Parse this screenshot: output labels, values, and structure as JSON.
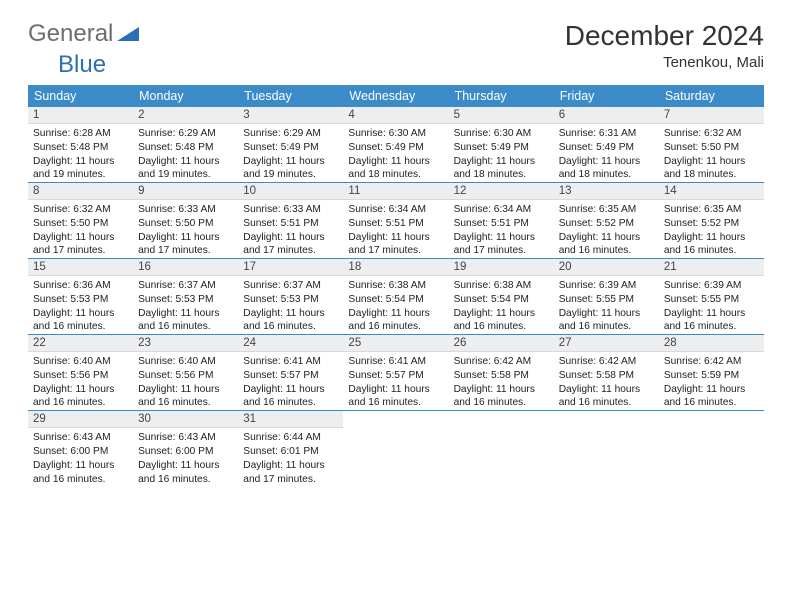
{
  "brand": {
    "general": "General",
    "blue": "Blue"
  },
  "title": "December 2024",
  "location": "Tenenkou, Mali",
  "header_bg": "#3b8bc9",
  "header_fg": "#ffffff",
  "daynum_bg": "#edeef0",
  "day_names": [
    "Sunday",
    "Monday",
    "Tuesday",
    "Wednesday",
    "Thursday",
    "Friday",
    "Saturday"
  ],
  "weeks": [
    [
      {
        "n": "1",
        "sr": "6:28 AM",
        "ss": "5:48 PM",
        "dl": "11 hours and 19 minutes."
      },
      {
        "n": "2",
        "sr": "6:29 AM",
        "ss": "5:48 PM",
        "dl": "11 hours and 19 minutes."
      },
      {
        "n": "3",
        "sr": "6:29 AM",
        "ss": "5:49 PM",
        "dl": "11 hours and 19 minutes."
      },
      {
        "n": "4",
        "sr": "6:30 AM",
        "ss": "5:49 PM",
        "dl": "11 hours and 18 minutes."
      },
      {
        "n": "5",
        "sr": "6:30 AM",
        "ss": "5:49 PM",
        "dl": "11 hours and 18 minutes."
      },
      {
        "n": "6",
        "sr": "6:31 AM",
        "ss": "5:49 PM",
        "dl": "11 hours and 18 minutes."
      },
      {
        "n": "7",
        "sr": "6:32 AM",
        "ss": "5:50 PM",
        "dl": "11 hours and 18 minutes."
      }
    ],
    [
      {
        "n": "8",
        "sr": "6:32 AM",
        "ss": "5:50 PM",
        "dl": "11 hours and 17 minutes."
      },
      {
        "n": "9",
        "sr": "6:33 AM",
        "ss": "5:50 PM",
        "dl": "11 hours and 17 minutes."
      },
      {
        "n": "10",
        "sr": "6:33 AM",
        "ss": "5:51 PM",
        "dl": "11 hours and 17 minutes."
      },
      {
        "n": "11",
        "sr": "6:34 AM",
        "ss": "5:51 PM",
        "dl": "11 hours and 17 minutes."
      },
      {
        "n": "12",
        "sr": "6:34 AM",
        "ss": "5:51 PM",
        "dl": "11 hours and 17 minutes."
      },
      {
        "n": "13",
        "sr": "6:35 AM",
        "ss": "5:52 PM",
        "dl": "11 hours and 16 minutes."
      },
      {
        "n": "14",
        "sr": "6:35 AM",
        "ss": "5:52 PM",
        "dl": "11 hours and 16 minutes."
      }
    ],
    [
      {
        "n": "15",
        "sr": "6:36 AM",
        "ss": "5:53 PM",
        "dl": "11 hours and 16 minutes."
      },
      {
        "n": "16",
        "sr": "6:37 AM",
        "ss": "5:53 PM",
        "dl": "11 hours and 16 minutes."
      },
      {
        "n": "17",
        "sr": "6:37 AM",
        "ss": "5:53 PM",
        "dl": "11 hours and 16 minutes."
      },
      {
        "n": "18",
        "sr": "6:38 AM",
        "ss": "5:54 PM",
        "dl": "11 hours and 16 minutes."
      },
      {
        "n": "19",
        "sr": "6:38 AM",
        "ss": "5:54 PM",
        "dl": "11 hours and 16 minutes."
      },
      {
        "n": "20",
        "sr": "6:39 AM",
        "ss": "5:55 PM",
        "dl": "11 hours and 16 minutes."
      },
      {
        "n": "21",
        "sr": "6:39 AM",
        "ss": "5:55 PM",
        "dl": "11 hours and 16 minutes."
      }
    ],
    [
      {
        "n": "22",
        "sr": "6:40 AM",
        "ss": "5:56 PM",
        "dl": "11 hours and 16 minutes."
      },
      {
        "n": "23",
        "sr": "6:40 AM",
        "ss": "5:56 PM",
        "dl": "11 hours and 16 minutes."
      },
      {
        "n": "24",
        "sr": "6:41 AM",
        "ss": "5:57 PM",
        "dl": "11 hours and 16 minutes."
      },
      {
        "n": "25",
        "sr": "6:41 AM",
        "ss": "5:57 PM",
        "dl": "11 hours and 16 minutes."
      },
      {
        "n": "26",
        "sr": "6:42 AM",
        "ss": "5:58 PM",
        "dl": "11 hours and 16 minutes."
      },
      {
        "n": "27",
        "sr": "6:42 AM",
        "ss": "5:58 PM",
        "dl": "11 hours and 16 minutes."
      },
      {
        "n": "28",
        "sr": "6:42 AM",
        "ss": "5:59 PM",
        "dl": "11 hours and 16 minutes."
      }
    ],
    [
      {
        "n": "29",
        "sr": "6:43 AM",
        "ss": "6:00 PM",
        "dl": "11 hours and 16 minutes."
      },
      {
        "n": "30",
        "sr": "6:43 AM",
        "ss": "6:00 PM",
        "dl": "11 hours and 16 minutes."
      },
      {
        "n": "31",
        "sr": "6:44 AM",
        "ss": "6:01 PM",
        "dl": "11 hours and 17 minutes."
      },
      null,
      null,
      null,
      null
    ]
  ],
  "labels": {
    "sunrise": "Sunrise:",
    "sunset": "Sunset:",
    "daylight": "Daylight:"
  }
}
